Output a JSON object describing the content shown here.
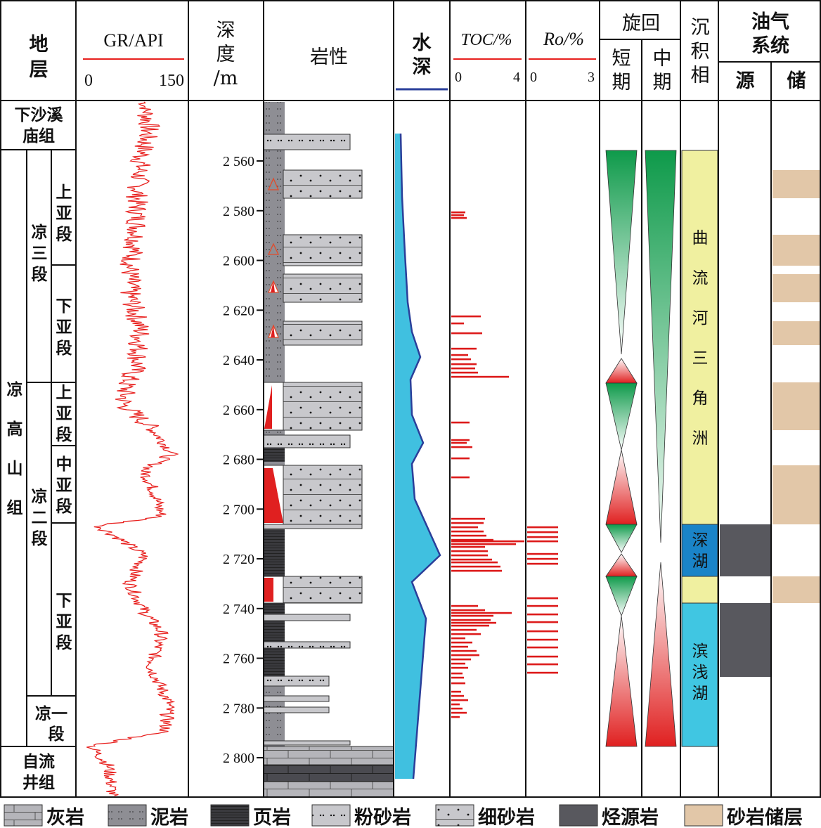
{
  "headers": {
    "strata": "地层",
    "gr": "GR/API",
    "gr_min": "0",
    "gr_max": "150",
    "depth_lines": [
      "深",
      "度",
      "/m"
    ],
    "lithology": "岩性",
    "water_depth": [
      "水",
      "深"
    ],
    "toc": "TOC/%",
    "toc_min": "0",
    "toc_max": "4",
    "ro": "Ro/%",
    "ro_min": "0",
    "ro_max": "3",
    "cycle": "旋回",
    "cycle_short": [
      "短",
      "期"
    ],
    "cycle_mid": [
      "中",
      "期"
    ],
    "facies": [
      "沉",
      "积",
      "相"
    ],
    "petroleum": [
      "油气",
      "系统"
    ],
    "source": "源",
    "reservoir": "储"
  },
  "strata": {
    "xiashaximiao": [
      "下沙溪",
      "庙组"
    ],
    "lianggaoshan": [
      "凉",
      "高",
      "山",
      "组"
    ],
    "liang3": [
      "凉",
      "三",
      "段"
    ],
    "liang2": [
      "凉",
      "二",
      "段"
    ],
    "liang1": [
      "凉一",
      "段"
    ],
    "ziliujing": [
      "自流",
      "井组"
    ],
    "l3_upper": [
      "上",
      "亚",
      "段"
    ],
    "l3_lower": [
      "下",
      "亚",
      "段"
    ],
    "l2_upper": [
      "上",
      "亚",
      "段"
    ],
    "l2_middle": [
      "中",
      "亚",
      "段"
    ],
    "l2_lower": [
      "下",
      "亚",
      "段"
    ]
  },
  "depth_ticks": [
    "2 560",
    "2 580",
    "2 600",
    "2 620",
    "2 640",
    "2 660",
    "2 680",
    "2 700",
    "2 720",
    "2 740",
    "2 760",
    "2 780",
    "2 800"
  ],
  "facies": {
    "meander": [
      "曲",
      "流",
      "河",
      "三",
      "角",
      "洲"
    ],
    "deep": [
      "深",
      "湖"
    ],
    "shore": [
      "滨",
      "浅",
      "湖"
    ]
  },
  "legend": [
    {
      "label": "灰岩",
      "pattern": "limestone"
    },
    {
      "label": "泥岩",
      "pattern": "mudstone"
    },
    {
      "label": "页岩",
      "pattern": "shale"
    },
    {
      "label": "粉砂岩",
      "pattern": "siltstone"
    },
    {
      "label": "细砂岩",
      "pattern": "sandstone"
    },
    {
      "label": "烃源岩",
      "pattern": "source"
    },
    {
      "label": "砂岩储层",
      "pattern": "reservoir"
    }
  ],
  "colors": {
    "gr_curve": "#e8201e",
    "water": "#40c0e0",
    "toc_bar": "#dd1a1a",
    "delta": "#f0f0a0",
    "deep_lake": "#1a84c8",
    "shore_lake": "#40c6e2",
    "source_rock": "#58585e",
    "reservoir": "#e2c7a8"
  }
}
